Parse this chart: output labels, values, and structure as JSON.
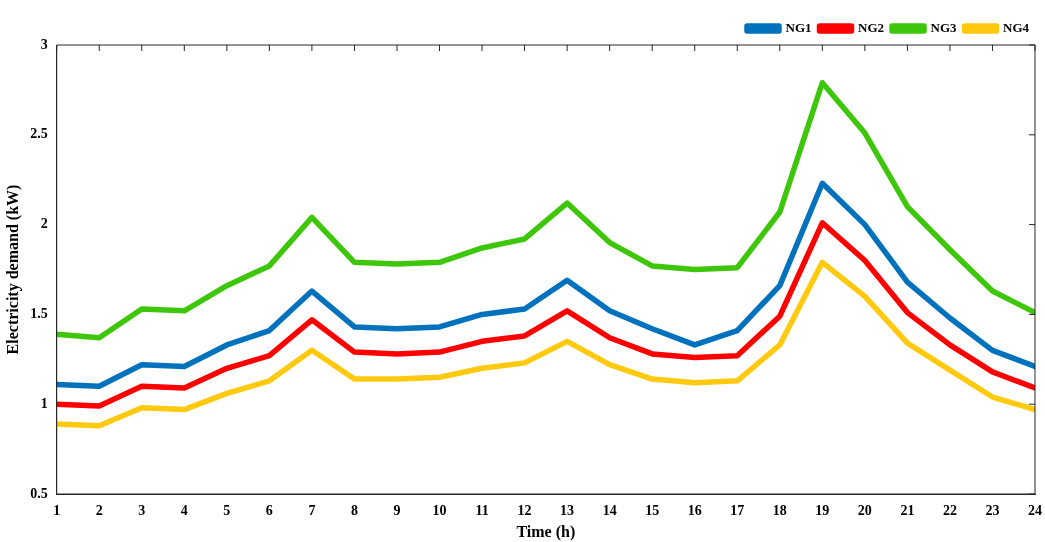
{
  "chart_data": {
    "type": "line",
    "xlabel": "Time (h)",
    "ylabel": "Electricity demand (kW)",
    "x": [
      1,
      2,
      3,
      4,
      5,
      6,
      7,
      8,
      9,
      10,
      11,
      12,
      13,
      14,
      15,
      16,
      17,
      18,
      19,
      20,
      21,
      22,
      23,
      24
    ],
    "xlim": [
      1,
      24
    ],
    "xticks": [
      1,
      2,
      3,
      4,
      5,
      6,
      7,
      8,
      9,
      10,
      11,
      12,
      13,
      14,
      15,
      16,
      17,
      18,
      19,
      20,
      21,
      22,
      23,
      24
    ],
    "ylim": [
      0.5,
      3
    ],
    "yticks": [
      0.5,
      1,
      1.5,
      2,
      2.5,
      3
    ],
    "grid": false,
    "legend": "top right",
    "marker": "none",
    "line_style": "solid",
    "series": [
      {
        "name": "NG1",
        "color": "#0072bd",
        "values": [
          1.11,
          1.1,
          1.22,
          1.21,
          1.33,
          1.41,
          1.63,
          1.43,
          1.42,
          1.43,
          1.5,
          1.53,
          1.69,
          1.52,
          1.42,
          1.33,
          1.41,
          1.66,
          2.23,
          2.0,
          1.68,
          1.48,
          1.3,
          1.21
        ]
      },
      {
        "name": "NG2",
        "color": "#ff0000",
        "values": [
          1.0,
          0.99,
          1.1,
          1.09,
          1.2,
          1.27,
          1.47,
          1.29,
          1.28,
          1.29,
          1.35,
          1.38,
          1.52,
          1.37,
          1.28,
          1.26,
          1.27,
          1.49,
          2.01,
          1.8,
          1.51,
          1.33,
          1.18,
          1.09
        ]
      },
      {
        "name": "NG3",
        "color": "#3ec70a",
        "values": [
          1.39,
          1.37,
          1.53,
          1.52,
          1.66,
          1.77,
          2.04,
          1.79,
          1.78,
          1.79,
          1.87,
          1.92,
          2.12,
          1.9,
          1.77,
          1.75,
          1.76,
          2.07,
          2.79,
          2.51,
          2.1,
          1.86,
          1.63,
          1.51
        ]
      },
      {
        "name": "NG4",
        "color": "#ffc90e",
        "values": [
          0.89,
          0.88,
          0.98,
          0.97,
          1.06,
          1.13,
          1.3,
          1.14,
          1.14,
          1.15,
          1.2,
          1.23,
          1.35,
          1.22,
          1.14,
          1.12,
          1.13,
          1.33,
          1.79,
          1.6,
          1.34,
          1.19,
          1.04,
          0.97
        ]
      }
    ]
  }
}
